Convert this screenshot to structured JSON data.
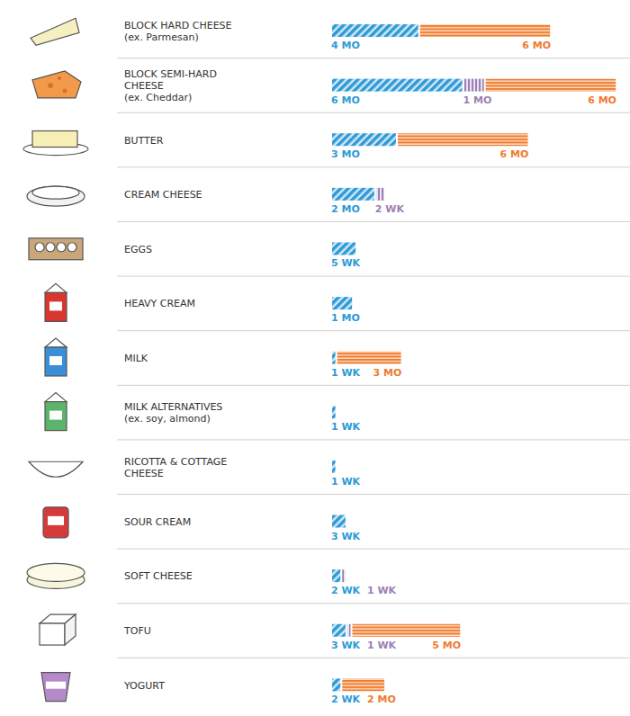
{
  "chart_data": {
    "type": "bar",
    "orientation": "horizontal",
    "stacked": true,
    "categories": [
      "BLOCK HARD CHEESE (ex. Parmesan)",
      "BLOCK SEMI-HARD CHEESE (ex. Cheddar)",
      "BUTTER",
      "CREAM CHEESE",
      "EGGS",
      "HEAVY CREAM",
      "MILK",
      "MILK ALTERNATIVES (ex. soy, almond)",
      "RICOTTA & COTTAGE CHEESE",
      "SOUR CREAM",
      "SOFT CHEESE",
      "TOFU",
      "YOGURT"
    ],
    "series": [
      {
        "color": "#2e9ad6",
        "values": [
          17.4,
          26.1,
          13.0,
          8.7,
          5,
          4.3,
          1,
          1,
          1,
          3,
          2,
          3,
          2
        ],
        "value_labels": [
          "4 MO",
          "6 MO",
          "3 MO",
          "2 MO",
          "5 WK",
          "1 MO",
          "1 WK",
          "1 WK",
          "1 WK",
          "3 WK",
          "2 WK",
          "3 WK",
          "2 WK"
        ]
      },
      {
        "color": "#9c7fb3",
        "values": [
          null,
          4.3,
          null,
          2,
          null,
          null,
          null,
          null,
          null,
          null,
          1,
          1,
          null
        ],
        "value_labels": [
          null,
          "1 MO",
          null,
          "2 WK",
          null,
          null,
          null,
          null,
          null,
          null,
          "1 WK",
          "1 WK",
          null
        ]
      },
      {
        "color": "#f07b2e",
        "values": [
          26.1,
          26.1,
          26.1,
          null,
          null,
          null,
          13.0,
          null,
          null,
          null,
          null,
          21.7,
          8.7
        ],
        "value_labels": [
          "6 MO",
          "6 MO",
          "6 MO",
          null,
          null,
          null,
          "3 MO",
          null,
          null,
          null,
          null,
          "5 MO",
          "2 MO"
        ]
      }
    ],
    "xlim": [
      0,
      57
    ],
    "tick_labels": false,
    "data_labels": true,
    "grid": false
  }
}
